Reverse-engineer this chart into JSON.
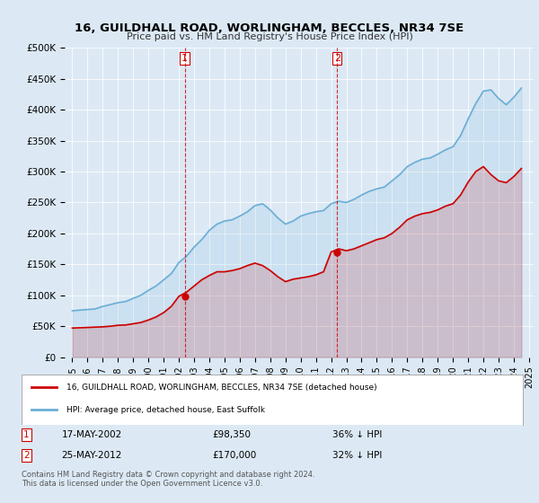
{
  "title": "16, GUILDHALL ROAD, WORLINGHAM, BECCLES, NR34 7SE",
  "subtitle": "Price paid vs. HM Land Registry's House Price Index (HPI)",
  "bg_color": "#dce9f5",
  "plot_bg_color": "#dce9f5",
  "hpi_color": "#6baed6",
  "price_color": "#cc0000",
  "ylim": [
    0,
    500000
  ],
  "yticks": [
    0,
    50000,
    100000,
    150000,
    200000,
    250000,
    300000,
    350000,
    400000,
    450000,
    500000
  ],
  "ylabel_format": "£{0}K",
  "legend_label_price": "16, GUILDHALL ROAD, WORLINGHAM, BECCLES, NR34 7SE (detached house)",
  "legend_label_hpi": "HPI: Average price, detached house, East Suffolk",
  "transaction1_label": "1",
  "transaction1_date": "17-MAY-2002",
  "transaction1_price": "£98,350",
  "transaction1_pct": "36% ↓ HPI",
  "transaction2_label": "2",
  "transaction2_date": "25-MAY-2012",
  "transaction2_price": "£170,000",
  "transaction2_pct": "32% ↓ HPI",
  "footer": "Contains HM Land Registry data © Crown copyright and database right 2024.\nThis data is licensed under the Open Government Licence v3.0.",
  "vline1_x": 2002.38,
  "vline2_x": 2012.39,
  "marker1_y": 98350,
  "marker2_y": 170000,
  "hpi_years": [
    1995,
    1995.5,
    1996,
    1996.5,
    1997,
    1997.5,
    1998,
    1998.5,
    1999,
    1999.5,
    2000,
    2000.5,
    2001,
    2001.5,
    2002,
    2002.5,
    2003,
    2003.5,
    2004,
    2004.5,
    2005,
    2005.5,
    2006,
    2006.5,
    2007,
    2007.5,
    2008,
    2008.5,
    2009,
    2009.5,
    2010,
    2010.5,
    2011,
    2011.5,
    2012,
    2012.5,
    2013,
    2013.5,
    2014,
    2014.5,
    2015,
    2015.5,
    2016,
    2016.5,
    2017,
    2017.5,
    2018,
    2018.5,
    2019,
    2019.5,
    2020,
    2020.5,
    2021,
    2021.5,
    2022,
    2022.5,
    2023,
    2023.5,
    2024,
    2024.5
  ],
  "hpi_values": [
    75000,
    76000,
    77000,
    78000,
    82000,
    85000,
    88000,
    90000,
    95000,
    100000,
    108000,
    115000,
    125000,
    135000,
    153000,
    163000,
    178000,
    190000,
    205000,
    215000,
    220000,
    222000,
    228000,
    235000,
    245000,
    248000,
    238000,
    225000,
    215000,
    220000,
    228000,
    232000,
    235000,
    237000,
    248000,
    252000,
    250000,
    255000,
    262000,
    268000,
    272000,
    275000,
    285000,
    295000,
    308000,
    315000,
    320000,
    322000,
    328000,
    335000,
    340000,
    358000,
    385000,
    410000,
    430000,
    432000,
    418000,
    408000,
    420000,
    435000
  ],
  "price_years": [
    1995,
    1995.5,
    1996,
    1996.5,
    1997,
    1997.5,
    1998,
    1998.5,
    1999,
    1999.5,
    2000,
    2000.5,
    2001,
    2001.5,
    2002,
    2002.5,
    2003,
    2003.5,
    2004,
    2004.5,
    2005,
    2005.5,
    2006,
    2006.5,
    2007,
    2007.5,
    2008,
    2008.5,
    2009,
    2009.5,
    2010,
    2010.5,
    2011,
    2011.5,
    2012,
    2012.5,
    2013,
    2013.5,
    2014,
    2014.5,
    2015,
    2015.5,
    2016,
    2016.5,
    2017,
    2017.5,
    2018,
    2018.5,
    2019,
    2019.5,
    2020,
    2020.5,
    2021,
    2021.5,
    2022,
    2022.5,
    2023,
    2023.5,
    2024,
    2024.5
  ],
  "price_values": [
    47000,
    47500,
    48000,
    48500,
    49000,
    50000,
    51500,
    52000,
    54000,
    56000,
    60000,
    65000,
    72000,
    82000,
    98350,
    105000,
    115000,
    125000,
    132000,
    138000,
    138000,
    140000,
    143000,
    148000,
    152000,
    148000,
    140000,
    130000,
    122000,
    126000,
    128000,
    130000,
    133000,
    138000,
    170000,
    175000,
    172000,
    175000,
    180000,
    185000,
    190000,
    193000,
    200000,
    210000,
    222000,
    228000,
    232000,
    234000,
    238000,
    244000,
    248000,
    262000,
    283000,
    300000,
    308000,
    295000,
    285000,
    282000,
    292000,
    305000
  ],
  "xtick_years": [
    1995,
    1996,
    1997,
    1998,
    1999,
    2000,
    2001,
    2002,
    2003,
    2004,
    2005,
    2006,
    2007,
    2008,
    2009,
    2010,
    2011,
    2012,
    2013,
    2014,
    2015,
    2016,
    2017,
    2018,
    2019,
    2020,
    2021,
    2022,
    2023,
    2024,
    2025
  ]
}
